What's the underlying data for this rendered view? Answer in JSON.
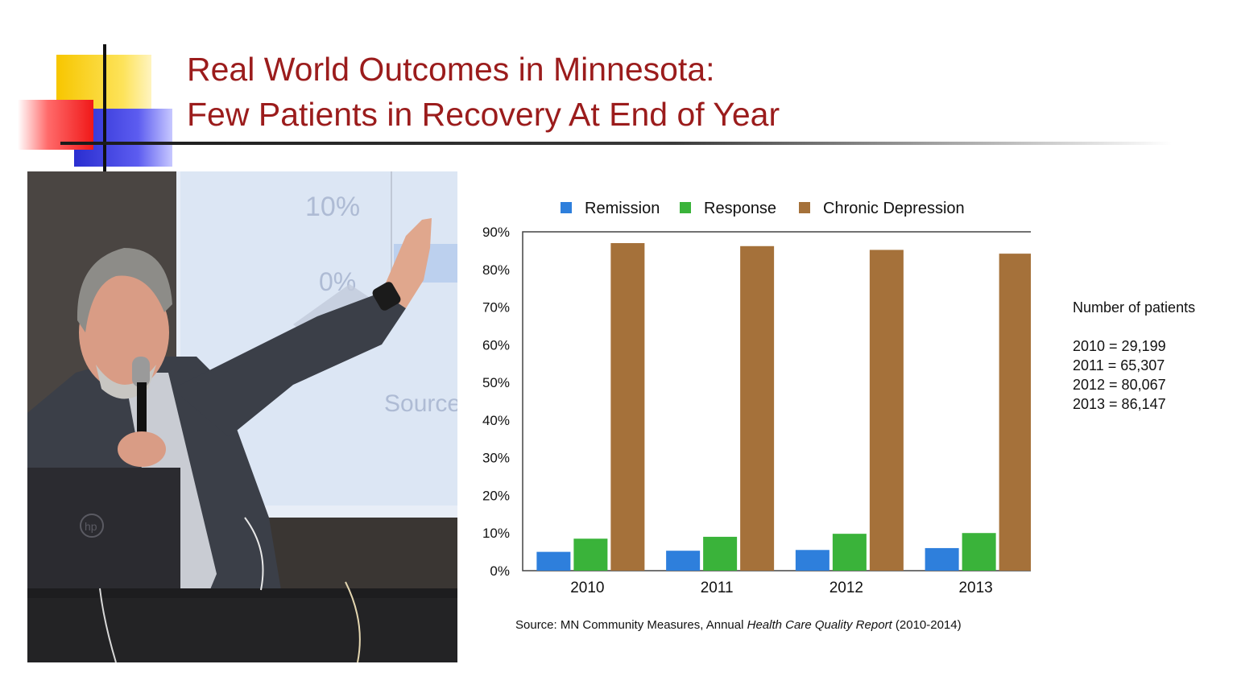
{
  "slide": {
    "title_line1": "Real World Outcomes in Minnesota:",
    "title_line2": "Few Patients in Recovery At End of Year"
  },
  "photo": {
    "background_texts": [
      "10%",
      "0%",
      "Source"
    ],
    "laptop_logo": "hp"
  },
  "chart_data": {
    "type": "bar",
    "categories": [
      "2010",
      "2011",
      "2012",
      "2013"
    ],
    "series": [
      {
        "name": "Remission",
        "color": "#2e7fdc",
        "values": [
          5,
          5.3,
          5.5,
          6
        ]
      },
      {
        "name": "Response",
        "color": "#3ab33a",
        "values": [
          8.5,
          9,
          9.8,
          10
        ]
      },
      {
        "name": "Chronic Depression",
        "color": "#a5713a",
        "values": [
          87,
          86.2,
          85.2,
          84.2
        ]
      }
    ],
    "ylim": [
      0,
      90
    ],
    "yticks": [
      "0%",
      "10%",
      "20%",
      "30%",
      "40%",
      "50%",
      "60%",
      "70%",
      "80%",
      "90%"
    ],
    "ytick_values": [
      0,
      10,
      20,
      30,
      40,
      50,
      60,
      70,
      80,
      90
    ],
    "grid": false,
    "legend_position": "top"
  },
  "patients_note": {
    "heading": "Number of patients",
    "lines": [
      "2010 = 29,199",
      "2011 = 65,307",
      "2012 = 80,067",
      "2013 = 86,147"
    ]
  },
  "source": {
    "prefix": "Source: MN Community Measures, Annual ",
    "italic": "Health Care Quality Report",
    "suffix": " (2010-2014)"
  }
}
